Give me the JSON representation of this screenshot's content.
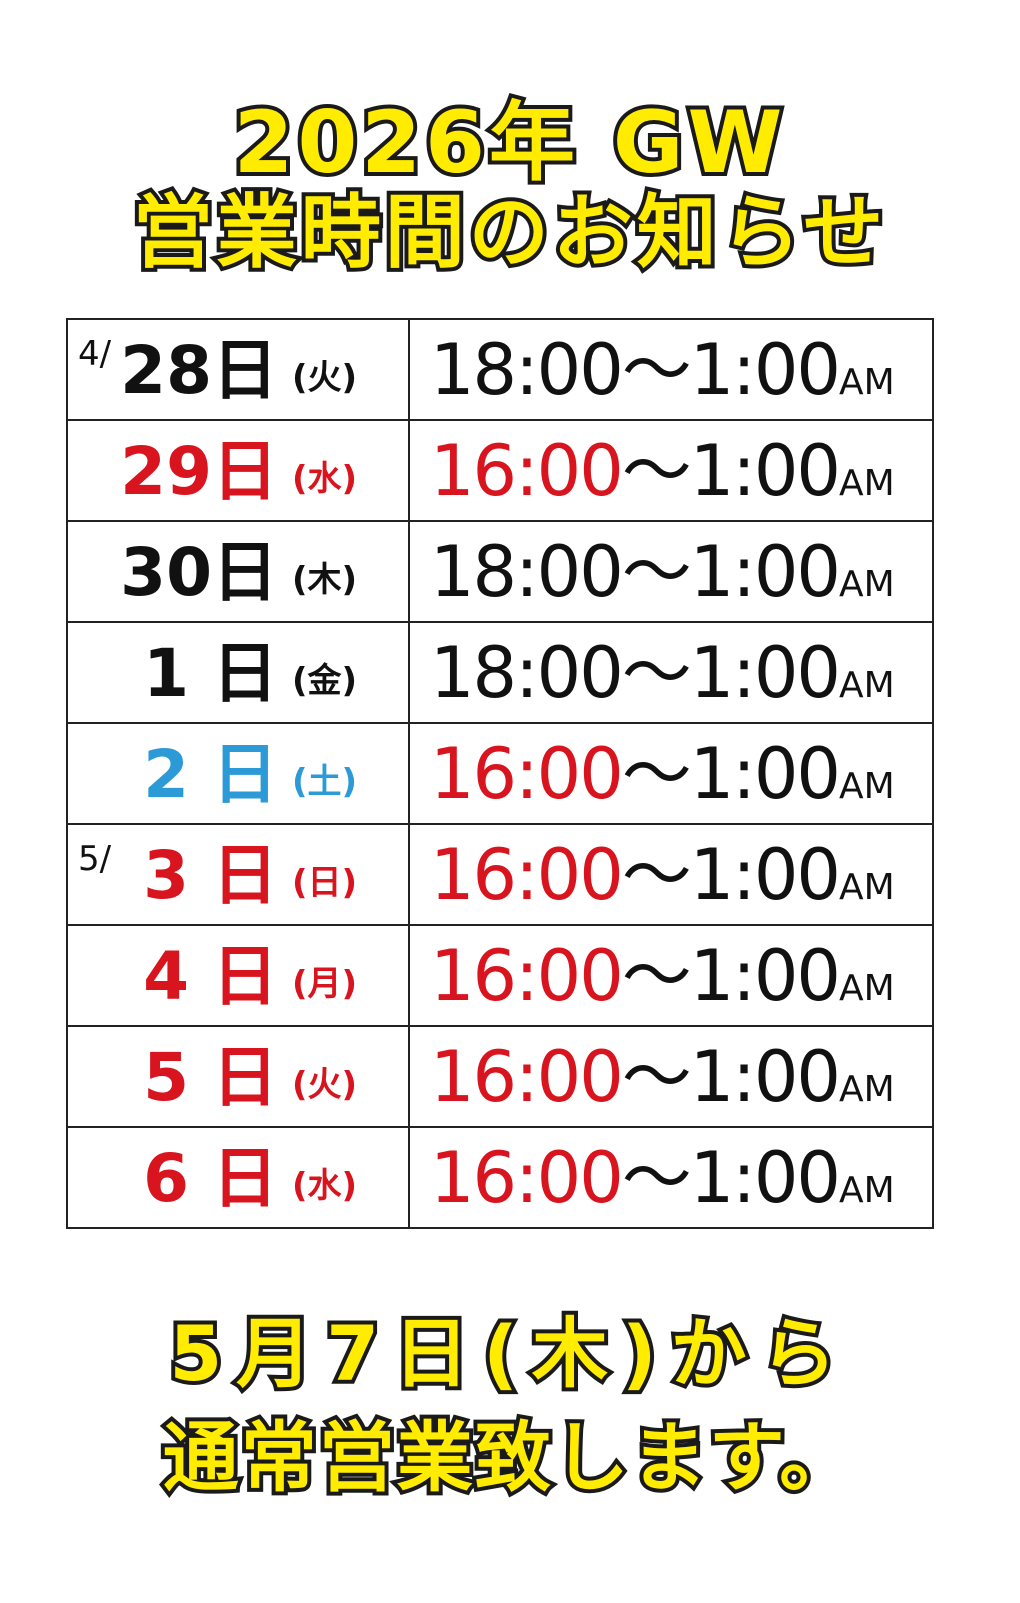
{
  "title": {
    "line1": "2026年 GW",
    "line2": "営業時間のお知らせ"
  },
  "colors": {
    "title_fill": "#ffec00",
    "outline": "#1a1a1a",
    "red": "#d8141e",
    "blue": "#2b9ad6",
    "black": "#111111"
  },
  "rows": [
    {
      "month": "4/",
      "day": "28日",
      "weekday": "(火)",
      "day_color": "#111111",
      "open": "18:00",
      "open_color": "#111111",
      "sep": "～",
      "close": "1:00",
      "suffix": "AM"
    },
    {
      "month": "",
      "day": "29日",
      "weekday": "(水)",
      "day_color": "#d8141e",
      "open": "16:00",
      "open_color": "#d8141e",
      "sep": "～",
      "close": "1:00",
      "suffix": "AM"
    },
    {
      "month": "",
      "day": "30日",
      "weekday": "(木)",
      "day_color": "#111111",
      "open": "18:00",
      "open_color": "#111111",
      "sep": "～",
      "close": "1:00",
      "suffix": "AM"
    },
    {
      "month": "",
      "day": "1 日",
      "weekday": "(金)",
      "day_color": "#111111",
      "open": "18:00",
      "open_color": "#111111",
      "sep": "～",
      "close": "1:00",
      "suffix": "AM"
    },
    {
      "month": "",
      "day": "2 日",
      "weekday": "(土)",
      "day_color": "#2b9ad6",
      "open": "16:00",
      "open_color": "#d8141e",
      "sep": "～",
      "close": "1:00",
      "suffix": "AM"
    },
    {
      "month": "5/",
      "day": "3 日",
      "weekday": "(日)",
      "day_color": "#d8141e",
      "open": "16:00",
      "open_color": "#d8141e",
      "sep": "～",
      "close": "1:00",
      "suffix": "AM"
    },
    {
      "month": "",
      "day": "4 日",
      "weekday": "(月)",
      "day_color": "#d8141e",
      "open": "16:00",
      "open_color": "#d8141e",
      "sep": "～",
      "close": "1:00",
      "suffix": "AM"
    },
    {
      "month": "",
      "day": "5 日",
      "weekday": "(火)",
      "day_color": "#d8141e",
      "open": "16:00",
      "open_color": "#d8141e",
      "sep": "～",
      "close": "1:00",
      "suffix": "AM"
    },
    {
      "month": "",
      "day": "6 日",
      "weekday": "(水)",
      "day_color": "#d8141e",
      "open": "16:00",
      "open_color": "#d8141e",
      "sep": "～",
      "close": "1:00",
      "suffix": "AM"
    }
  ],
  "footer": {
    "line1": "5月7日(木)から",
    "line2": "通常営業致します。"
  }
}
